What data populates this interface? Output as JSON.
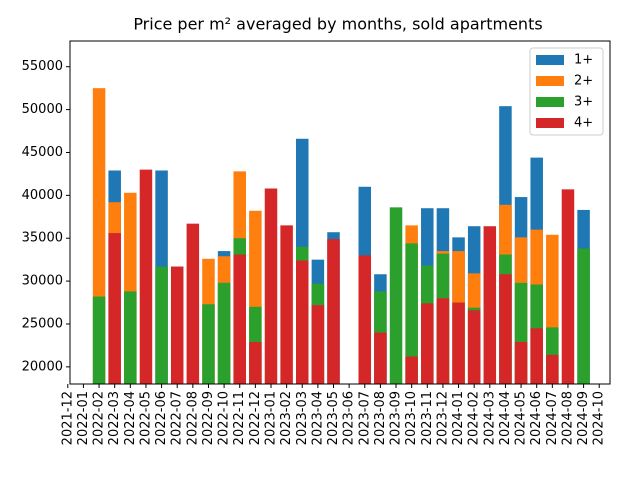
{
  "chart_data": {
    "type": "bar",
    "title": "Price per m² averaged by months, sold apartments",
    "categories": [
      "2021-12",
      "2022-01",
      "2022-02",
      "2022-03",
      "2022-04",
      "2022-05",
      "2022-06",
      "2022-07",
      "2022-08",
      "2022-09",
      "2022-10",
      "2022-11",
      "2022-12",
      "2023-01",
      "2023-02",
      "2023-03",
      "2023-04",
      "2023-05",
      "2023-06",
      "2023-07",
      "2023-08",
      "2023-09",
      "2023-10",
      "2023-11",
      "2023-12",
      "2024-01",
      "2024-02",
      "2024-03",
      "2024-04",
      "2024-05",
      "2024-06",
      "2024-07",
      "2024-08",
      "2024-09",
      "2024-10"
    ],
    "series": [
      {
        "name": "1+",
        "color": "#1f77b4",
        "values": [
          null,
          null,
          null,
          42900,
          null,
          null,
          42900,
          null,
          null,
          null,
          33500,
          null,
          null,
          null,
          null,
          46600,
          32500,
          35700,
          null,
          41000,
          30800,
          null,
          null,
          38500,
          38500,
          35100,
          36400,
          null,
          50400,
          39800,
          44400,
          null,
          null,
          38300,
          null
        ]
      },
      {
        "name": "2+",
        "color": "#ff7f0e",
        "values": [
          null,
          null,
          52500,
          39200,
          40300,
          null,
          null,
          null,
          null,
          32600,
          32900,
          42800,
          38200,
          null,
          null,
          null,
          null,
          null,
          null,
          null,
          null,
          null,
          36500,
          null,
          33500,
          33500,
          30900,
          null,
          38900,
          35100,
          36000,
          35400,
          null,
          null,
          null
        ]
      },
      {
        "name": "3+",
        "color": "#2ca02c",
        "values": [
          null,
          null,
          28200,
          null,
          28800,
          null,
          31700,
          null,
          null,
          27300,
          29800,
          35000,
          27000,
          null,
          null,
          34000,
          29700,
          null,
          null,
          null,
          28800,
          38600,
          34400,
          31800,
          33200,
          null,
          26900,
          null,
          33100,
          29800,
          29600,
          24600,
          null,
          33800,
          null
        ]
      },
      {
        "name": "4+",
        "color": "#d62728",
        "values": [
          null,
          null,
          null,
          35600,
          null,
          43000,
          null,
          31700,
          36700,
          null,
          null,
          33100,
          22900,
          40800,
          36500,
          32400,
          27200,
          34900,
          null,
          33000,
          24000,
          null,
          21200,
          27400,
          28000,
          27500,
          26600,
          36400,
          30800,
          22900,
          24500,
          21400,
          40700,
          null,
          null
        ]
      }
    ],
    "ylim": [
      18000,
      58000
    ],
    "yticks": [
      20000,
      25000,
      30000,
      35000,
      40000,
      45000,
      50000,
      55000
    ],
    "legend": "upper right"
  }
}
